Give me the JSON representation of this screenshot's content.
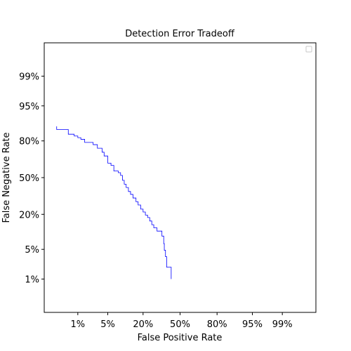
{
  "chart_data": {
    "type": "line",
    "title": "Detection Error Tradeoff",
    "xlabel": "False Positive Rate",
    "ylabel": "False Negative Rate",
    "scale": "normal-deviate (probit)",
    "xlim": [
      0.001,
      0.999
    ],
    "ylim": [
      0.001,
      0.999
    ],
    "ticks": [
      {
        "value": 0.01,
        "label": "1%"
      },
      {
        "value": 0.05,
        "label": "5%"
      },
      {
        "value": 0.2,
        "label": "20%"
      },
      {
        "value": 0.5,
        "label": "50%"
      },
      {
        "value": 0.8,
        "label": "80%"
      },
      {
        "value": 0.95,
        "label": "95%"
      },
      {
        "value": 0.99,
        "label": "99%"
      }
    ],
    "grid": false,
    "legend": {
      "placement": "top-right",
      "entries": []
    },
    "series": [
      {
        "color": "#0000ff",
        "points": [
          [
            0.0025,
            0.88
          ],
          [
            0.0025,
            0.865
          ],
          [
            0.0055,
            0.865
          ],
          [
            0.0055,
            0.84
          ],
          [
            0.008,
            0.84
          ],
          [
            0.008,
            0.83
          ],
          [
            0.01,
            0.83
          ],
          [
            0.01,
            0.82
          ],
          [
            0.012,
            0.82
          ],
          [
            0.012,
            0.81
          ],
          [
            0.015,
            0.81
          ],
          [
            0.015,
            0.79
          ],
          [
            0.024,
            0.79
          ],
          [
            0.024,
            0.775
          ],
          [
            0.03,
            0.775
          ],
          [
            0.03,
            0.75
          ],
          [
            0.038,
            0.75
          ],
          [
            0.038,
            0.72
          ],
          [
            0.042,
            0.72
          ],
          [
            0.042,
            0.69
          ],
          [
            0.05,
            0.69
          ],
          [
            0.05,
            0.63
          ],
          [
            0.058,
            0.63
          ],
          [
            0.058,
            0.61
          ],
          [
            0.066,
            0.61
          ],
          [
            0.066,
            0.56
          ],
          [
            0.08,
            0.56
          ],
          [
            0.08,
            0.545
          ],
          [
            0.088,
            0.545
          ],
          [
            0.088,
            0.52
          ],
          [
            0.095,
            0.52
          ],
          [
            0.095,
            0.475
          ],
          [
            0.102,
            0.475
          ],
          [
            0.102,
            0.44
          ],
          [
            0.11,
            0.44
          ],
          [
            0.11,
            0.41
          ],
          [
            0.12,
            0.41
          ],
          [
            0.12,
            0.375
          ],
          [
            0.13,
            0.375
          ],
          [
            0.13,
            0.35
          ],
          [
            0.142,
            0.35
          ],
          [
            0.142,
            0.32
          ],
          [
            0.158,
            0.32
          ],
          [
            0.158,
            0.29
          ],
          [
            0.17,
            0.29
          ],
          [
            0.17,
            0.265
          ],
          [
            0.185,
            0.265
          ],
          [
            0.185,
            0.235
          ],
          [
            0.2,
            0.235
          ],
          [
            0.2,
            0.215
          ],
          [
            0.215,
            0.215
          ],
          [
            0.215,
            0.195
          ],
          [
            0.23,
            0.195
          ],
          [
            0.23,
            0.18
          ],
          [
            0.245,
            0.18
          ],
          [
            0.245,
            0.16
          ],
          [
            0.26,
            0.16
          ],
          [
            0.26,
            0.14
          ],
          [
            0.275,
            0.14
          ],
          [
            0.275,
            0.125
          ],
          [
            0.3,
            0.125
          ],
          [
            0.3,
            0.11
          ],
          [
            0.34,
            0.11
          ],
          [
            0.34,
            0.09
          ],
          [
            0.355,
            0.09
          ],
          [
            0.355,
            0.065
          ],
          [
            0.36,
            0.065
          ],
          [
            0.36,
            0.048
          ],
          [
            0.37,
            0.048
          ],
          [
            0.37,
            0.035
          ],
          [
            0.38,
            0.035
          ],
          [
            0.38,
            0.02
          ],
          [
            0.42,
            0.02
          ],
          [
            0.42,
            0.01
          ]
        ]
      }
    ]
  }
}
